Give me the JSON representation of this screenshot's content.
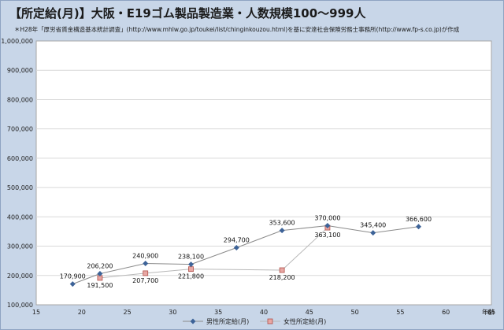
{
  "colors": {
    "background": "#c8d6e8",
    "plot_area": "#ffffff",
    "grid": "#d9d9d9",
    "male": "#3d6398",
    "female_fill": "#e8a7a3",
    "female_stroke": "#b0504a",
    "female_line": "#b8b8b8",
    "male_line": "#8a8a8a"
  },
  "chart_data": {
    "type": "line",
    "title": "【所定給(月)】大阪・E19ゴム製品製造業・人数規模100～999人",
    "subtitle": "＊H28年「厚労省賃金構造基本統計調査」(http://www.mhlw.go.jp/toukei/list/chinginkouzou.html)を基に安達社会保険労務士事務所(http://www.fp-s.co.jp)が作成",
    "xlabel": "年齢",
    "ylabel": "",
    "xlim": [
      15,
      65
    ],
    "ylim": [
      100000,
      1000000
    ],
    "x_ticks": [
      "15",
      "20",
      "25",
      "30",
      "35",
      "40",
      "45",
      "50",
      "55",
      "60",
      "65"
    ],
    "y_ticks": [
      "100,000",
      "200,000",
      "300,000",
      "400,000",
      "500,000",
      "600,000",
      "700,000",
      "800,000",
      "900,000",
      "1,000,000"
    ],
    "grid": "horizontal",
    "legend_position": "bottom",
    "series": [
      {
        "name": "男性所定給(月)",
        "marker": "diamond",
        "x": [
          19,
          22,
          27,
          32,
          37,
          42,
          47,
          52,
          57
        ],
        "y": [
          170900,
          206200,
          240900,
          238100,
          294700,
          353600,
          370000,
          345400,
          366600
        ],
        "labels": [
          "170,900",
          "206,200",
          "240,900",
          "238,100",
          "294,700",
          "353,600",
          "370,000",
          "345,400",
          "366,600"
        ]
      },
      {
        "name": "女性所定給(月)",
        "marker": "square",
        "x": [
          22,
          27,
          32,
          42,
          47
        ],
        "y": [
          191500,
          207700,
          221800,
          218200,
          363100
        ],
        "labels": [
          "191,500",
          "207,700",
          "221,800",
          "218,200",
          "363,100"
        ]
      }
    ]
  }
}
